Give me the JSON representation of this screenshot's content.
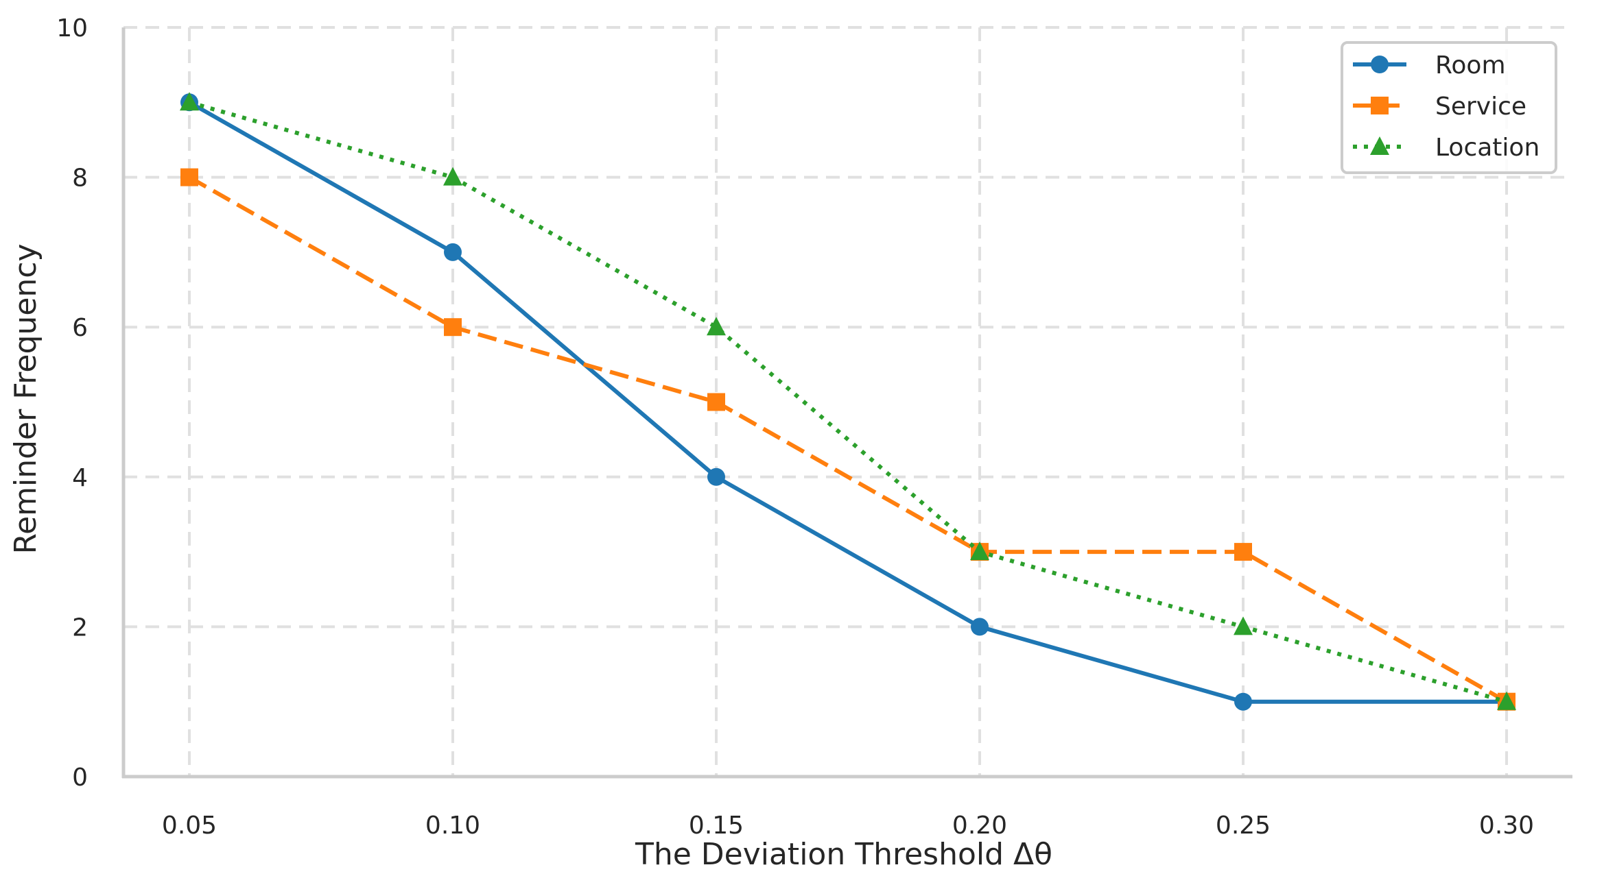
{
  "chart_data": {
    "type": "line",
    "title": "",
    "xlabel": "The Deviation Threshold Δθ",
    "ylabel": "Reminder Frequency",
    "x": [
      0.05,
      0.1,
      0.15,
      0.2,
      0.25,
      0.3
    ],
    "x_tick_labels": [
      "0.05",
      "0.10",
      "0.15",
      "0.20",
      "0.25",
      "0.30"
    ],
    "y_ticks": [
      0,
      2,
      4,
      6,
      8,
      10
    ],
    "y_tick_labels": [
      "0",
      "2",
      "4",
      "6",
      "8",
      "10"
    ],
    "xlim": [
      0.0375,
      0.3125
    ],
    "ylim": [
      0,
      10
    ],
    "grid": true,
    "legend_position": "top-right",
    "series": [
      {
        "name": "Room",
        "values": [
          9,
          7,
          4,
          2,
          1,
          1
        ],
        "color": "#1f77b4",
        "line_style": "solid",
        "marker": "circle"
      },
      {
        "name": "Service",
        "values": [
          8,
          6,
          5,
          3,
          3,
          1
        ],
        "color": "#ff7f0e",
        "line_style": "dashed",
        "marker": "square"
      },
      {
        "name": "Location",
        "values": [
          9,
          8,
          6,
          3,
          2,
          1
        ],
        "color": "#2ca02c",
        "line_style": "dotted",
        "marker": "triangle"
      }
    ]
  }
}
